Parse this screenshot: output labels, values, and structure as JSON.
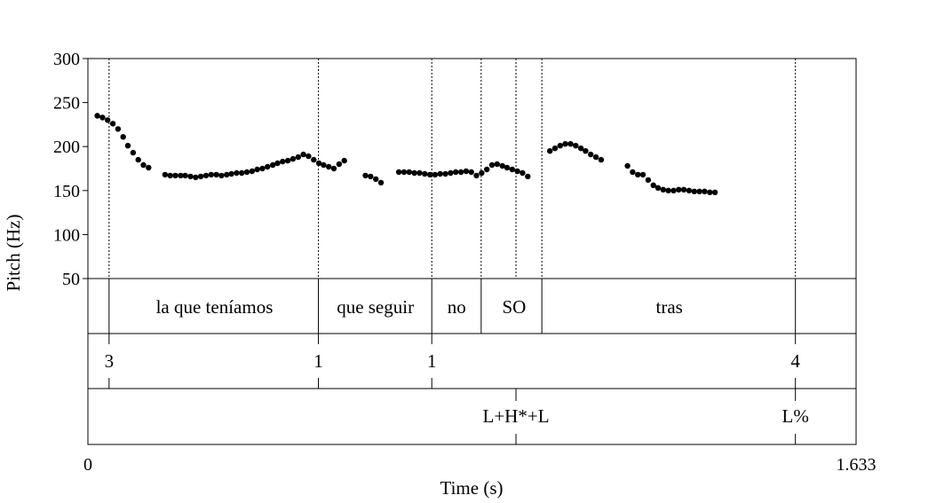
{
  "chart_data": {
    "type": "scatter",
    "ylabel": "Pitch (Hz)",
    "xlabel": "Time (s)",
    "xlim": [
      0,
      1.633
    ],
    "ylim": [
      50,
      300
    ],
    "x_tick_labels": [
      "0",
      "1.633"
    ],
    "y_ticks": [
      50,
      100,
      150,
      200,
      250,
      300
    ],
    "y_tick_labels": [
      "50",
      "100",
      "150",
      "200",
      "250",
      "300"
    ],
    "grid": false,
    "color": "#000000",
    "pitch_points": [
      [
        0.02,
        235
      ],
      [
        0.031,
        233
      ],
      [
        0.042,
        230
      ],
      [
        0.053,
        226
      ],
      [
        0.064,
        220
      ],
      [
        0.075,
        211
      ],
      [
        0.085,
        201
      ],
      [
        0.096,
        193
      ],
      [
        0.107,
        185
      ],
      [
        0.118,
        179
      ],
      [
        0.129,
        176
      ],
      [
        0.164,
        168
      ],
      [
        0.175,
        167
      ],
      [
        0.186,
        167
      ],
      [
        0.197,
        167
      ],
      [
        0.207,
        167
      ],
      [
        0.218,
        166
      ],
      [
        0.229,
        165
      ],
      [
        0.24,
        166
      ],
      [
        0.251,
        167
      ],
      [
        0.262,
        168
      ],
      [
        0.273,
        168
      ],
      [
        0.284,
        167
      ],
      [
        0.295,
        168
      ],
      [
        0.305,
        169
      ],
      [
        0.316,
        170
      ],
      [
        0.327,
        170
      ],
      [
        0.338,
        171
      ],
      [
        0.349,
        172
      ],
      [
        0.36,
        174
      ],
      [
        0.371,
        175
      ],
      [
        0.382,
        177
      ],
      [
        0.393,
        179
      ],
      [
        0.403,
        181
      ],
      [
        0.414,
        183
      ],
      [
        0.425,
        184
      ],
      [
        0.436,
        186
      ],
      [
        0.447,
        188
      ],
      [
        0.458,
        191
      ],
      [
        0.469,
        189
      ],
      [
        0.48,
        185
      ],
      [
        0.491,
        181
      ],
      [
        0.501,
        179
      ],
      [
        0.512,
        177
      ],
      [
        0.523,
        175
      ],
      [
        0.534,
        180
      ],
      [
        0.545,
        184
      ],
      [
        0.59,
        167
      ],
      [
        0.601,
        166
      ],
      [
        0.612,
        163
      ],
      [
        0.623,
        159
      ],
      [
        0.661,
        171
      ],
      [
        0.672,
        171
      ],
      [
        0.683,
        171
      ],
      [
        0.694,
        170
      ],
      [
        0.705,
        170
      ],
      [
        0.716,
        169
      ],
      [
        0.727,
        168
      ],
      [
        0.738,
        168
      ],
      [
        0.749,
        169
      ],
      [
        0.76,
        169
      ],
      [
        0.771,
        170
      ],
      [
        0.782,
        171
      ],
      [
        0.793,
        171
      ],
      [
        0.804,
        172
      ],
      [
        0.815,
        171
      ],
      [
        0.826,
        167
      ],
      [
        0.837,
        170
      ],
      [
        0.848,
        174
      ],
      [
        0.859,
        179
      ],
      [
        0.87,
        180
      ],
      [
        0.881,
        178
      ],
      [
        0.891,
        176
      ],
      [
        0.902,
        174
      ],
      [
        0.913,
        172
      ],
      [
        0.924,
        170
      ],
      [
        0.935,
        166
      ],
      [
        0.982,
        195
      ],
      [
        0.993,
        198
      ],
      [
        1.004,
        201
      ],
      [
        1.015,
        203
      ],
      [
        1.026,
        203
      ],
      [
        1.037,
        201
      ],
      [
        1.048,
        198
      ],
      [
        1.058,
        195
      ],
      [
        1.069,
        191
      ],
      [
        1.08,
        188
      ],
      [
        1.091,
        185
      ],
      [
        1.147,
        178
      ],
      [
        1.158,
        171
      ],
      [
        1.169,
        168
      ],
      [
        1.18,
        168
      ],
      [
        1.191,
        162
      ],
      [
        1.202,
        156
      ],
      [
        1.212,
        153
      ],
      [
        1.223,
        151
      ],
      [
        1.234,
        150
      ],
      [
        1.245,
        150
      ],
      [
        1.256,
        151
      ],
      [
        1.267,
        151
      ],
      [
        1.278,
        150
      ],
      [
        1.289,
        149
      ],
      [
        1.3,
        149
      ],
      [
        1.311,
        149
      ],
      [
        1.322,
        148
      ],
      [
        1.333,
        148
      ]
    ],
    "tiers": [
      {
        "name": "words",
        "boundaries": [
          0.045,
          0.49,
          0.731,
          0.836,
          0.965,
          1.504
        ],
        "labels": [
          {
            "t": 0.269,
            "text": "la que teníamos"
          },
          {
            "t": 0.611,
            "text": "que seguir"
          },
          {
            "t": 0.784,
            "text": "no"
          },
          {
            "t": 0.906,
            "text": "SO"
          },
          {
            "t": 1.236,
            "text": "tras"
          }
        ]
      },
      {
        "name": "break-indices",
        "points": [
          {
            "t": 0.045,
            "text": "3"
          },
          {
            "t": 0.49,
            "text": "1"
          },
          {
            "t": 0.731,
            "text": "1"
          },
          {
            "t": 1.504,
            "text": "4"
          }
        ]
      },
      {
        "name": "tones",
        "points": [
          {
            "t": 0.91,
            "text": "L+H*+L"
          },
          {
            "t": 1.504,
            "text": "L%"
          }
        ]
      }
    ],
    "pitch_dotted_lines": [
      0.045,
      0.49,
      0.731,
      0.836,
      0.91,
      0.965,
      1.504
    ]
  }
}
